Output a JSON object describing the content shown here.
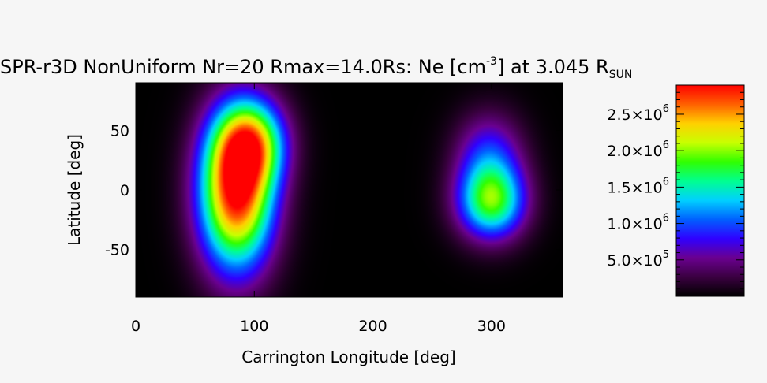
{
  "chart_data": {
    "type": "heatmap",
    "title": {
      "main": "SPR-r3D NonUniform Nr=20 Rmax=14.0Rs: Ne [cm",
      "exp": "-3",
      "mid": "] at 3.045 R",
      "sub": "SUN"
    },
    "xlabel": "Carrington Longitude [deg]",
    "ylabel": "Latitude [deg]",
    "xlim": [
      0,
      360
    ],
    "ylim": [
      -90,
      90
    ],
    "xticks": [
      {
        "value": 0,
        "label": "0"
      },
      {
        "value": 100,
        "label": "100"
      },
      {
        "value": 200,
        "label": "200"
      },
      {
        "value": 300,
        "label": "300"
      }
    ],
    "yticks": [
      {
        "value": 50,
        "label": "50"
      },
      {
        "value": 0,
        "label": "0"
      },
      {
        "value": -50,
        "label": "-50"
      }
    ],
    "colorbar": {
      "range": [
        0,
        2900000.0
      ],
      "colormap": [
        "#000000",
        "#3a0040",
        "#6a0090",
        "#3000ff",
        "#0060ff",
        "#00d0ff",
        "#00ff90",
        "#30ff00",
        "#c8ff00",
        "#ffd000",
        "#ff6000",
        "#ff0000"
      ],
      "ticks": [
        {
          "value": 500000,
          "mant": "5.0",
          "exp": "5"
        },
        {
          "value": 1000000,
          "mant": "1.0",
          "exp": "6"
        },
        {
          "value": 1500000,
          "mant": "1.5",
          "exp": "6"
        },
        {
          "value": 2000000,
          "mant": "2.0",
          "exp": "6"
        },
        {
          "value": 2500000,
          "mant": "2.5",
          "exp": "6"
        }
      ],
      "times": "×10"
    },
    "density_features": [
      {
        "lon": 85,
        "lat": -2,
        "peak": 2900000.0,
        "lon_width": 22,
        "lat_width": 45
      },
      {
        "lon": 98,
        "lat": 40,
        "peak": 1600000.0,
        "lon_width": 20,
        "lat_width": 25
      },
      {
        "lon": 300,
        "lat": -10,
        "peak": 1800000.0,
        "lon_width": 20,
        "lat_width": 22
      },
      {
        "lon": 298,
        "lat": 30,
        "peak": 800000.0,
        "lon_width": 20,
        "lat_width": 25
      }
    ]
  }
}
